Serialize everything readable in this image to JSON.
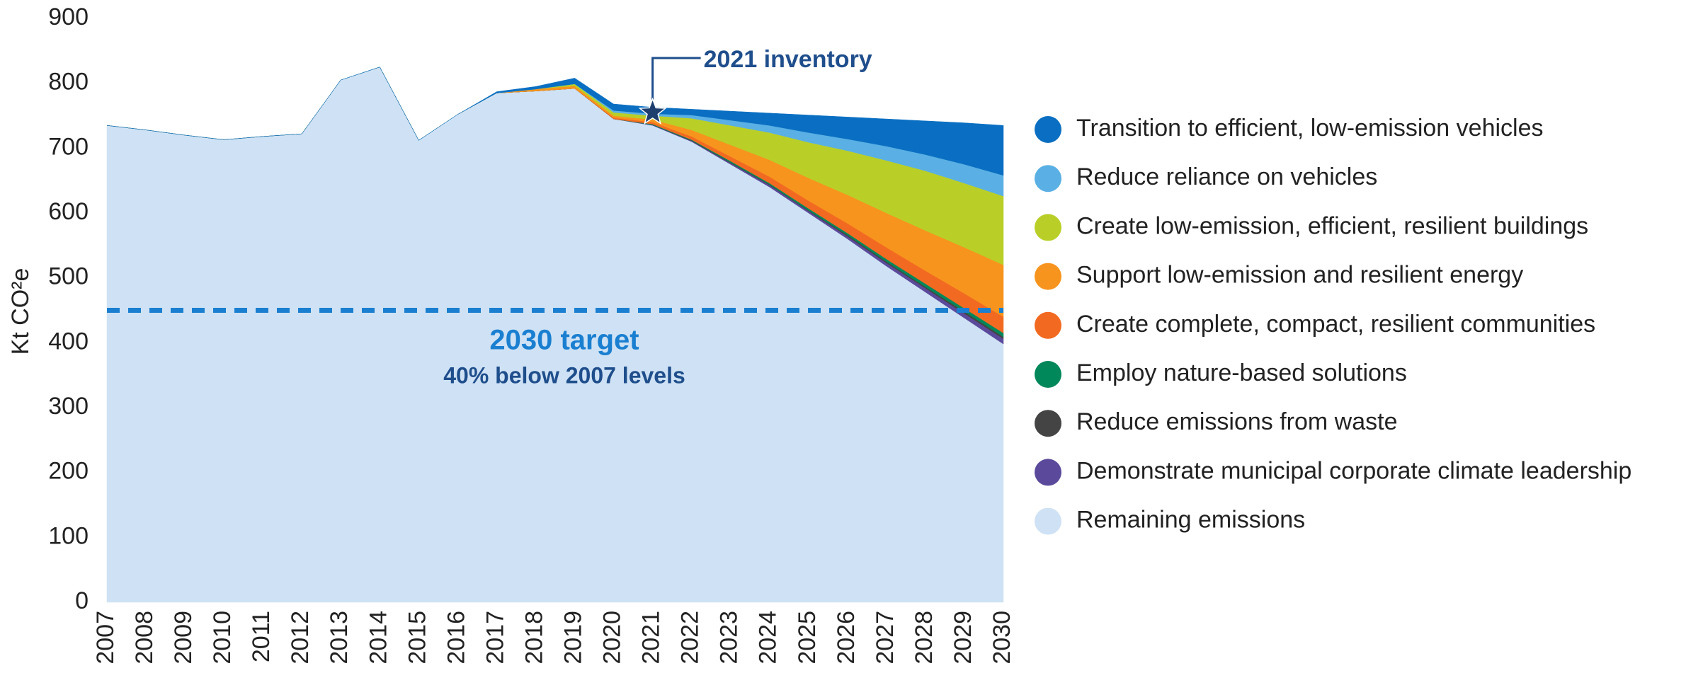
{
  "chart_data": {
    "type": "stacked_area",
    "y_label": "Kt CO²e",
    "categories": [
      "2007",
      "2008",
      "2009",
      "2010",
      "2011",
      "2012",
      "2013",
      "2014",
      "2015",
      "2016",
      "2017",
      "2018",
      "2019",
      "2020",
      "2021",
      "2022",
      "2023",
      "2024",
      "2025",
      "2026",
      "2027",
      "2028",
      "2029",
      "2030"
    ],
    "ylim": [
      0,
      900
    ],
    "yticks": [
      0,
      100,
      200,
      300,
      400,
      500,
      600,
      700,
      800,
      900
    ],
    "series": [
      {
        "name": "Transition to efficient, low-emission vehicles",
        "color": "#0a6fc2",
        "values": [
          0,
          0,
          0,
          0,
          0,
          0,
          0,
          0,
          0,
          0,
          2,
          4,
          9,
          10,
          10,
          9,
          14,
          19,
          27,
          34,
          42,
          52,
          64,
          77
        ]
      },
      {
        "name": "Reduce reliance on vehicles",
        "color": "#5ab0e4",
        "values": [
          0,
          0,
          0,
          0,
          0,
          0,
          0,
          0,
          0,
          0,
          0,
          0,
          0,
          3,
          3,
          5,
          8,
          11,
          15,
          18,
          22,
          25,
          29,
          32
        ]
      },
      {
        "name": "Create low-emission, efficient, resilient buildings",
        "color": "#b9cf27",
        "values": [
          0,
          0,
          0,
          0,
          0,
          0,
          0,
          0,
          0,
          0,
          0,
          0,
          3,
          5,
          6,
          18,
          30,
          42,
          55,
          68,
          81,
          92,
          99,
          106
        ]
      },
      {
        "name": "Support low-emission and resilient energy",
        "color": "#f7941d",
        "values": [
          0,
          0,
          0,
          0,
          0,
          0,
          0,
          0,
          0,
          0,
          0,
          3,
          4,
          3,
          4,
          10,
          18,
          26,
          35,
          44,
          53,
          62,
          71,
          80
        ]
      },
      {
        "name": "Create complete, compact, resilient communities",
        "color": "#f26a21",
        "values": [
          0,
          0,
          0,
          0,
          0,
          0,
          0,
          0,
          0,
          0,
          0,
          0,
          0,
          2,
          3,
          5,
          7,
          10,
          12,
          15,
          18,
          20,
          23,
          25
        ]
      },
      {
        "name": "Employ nature-based solutions",
        "color": "#00875a",
        "values": [
          0,
          0,
          0,
          0,
          0,
          0,
          0,
          0,
          0,
          0,
          0,
          0,
          0,
          0,
          1,
          1,
          2,
          2,
          3,
          3,
          4,
          5,
          5,
          6
        ]
      },
      {
        "name": "Reduce emissions from waste",
        "color": "#444444",
        "values": [
          0,
          0,
          0,
          0,
          0,
          0,
          0,
          0,
          0,
          0,
          0,
          0,
          0,
          0,
          0,
          1,
          1,
          1,
          1,
          2,
          2,
          2,
          3,
          3
        ]
      },
      {
        "name": "Demonstrate municipal corporate climate leadership",
        "color": "#5b4a9c",
        "values": [
          0,
          0,
          0,
          0,
          0,
          0,
          0,
          0,
          0,
          0,
          0,
          0,
          0,
          0,
          1,
          1,
          2,
          3,
          3,
          4,
          5,
          6,
          7,
          8
        ]
      },
      {
        "name": "Remaining emissions",
        "color": "#cfe2f5",
        "values": [
          735,
          728,
          720,
          713,
          718,
          722,
          805,
          825,
          712,
          752,
          785,
          788,
          792,
          745,
          735,
          710,
          675,
          640,
          600,
          560,
          518,
          478,
          438,
          398
        ]
      }
    ],
    "reference_line": {
      "value": 450,
      "color": "#1a7fd0",
      "label": "2030 target",
      "sublabel": "40% below 2007 levels"
    },
    "annotation": {
      "text": "2021 inventory",
      "category": "2021",
      "value": 755
    }
  }
}
